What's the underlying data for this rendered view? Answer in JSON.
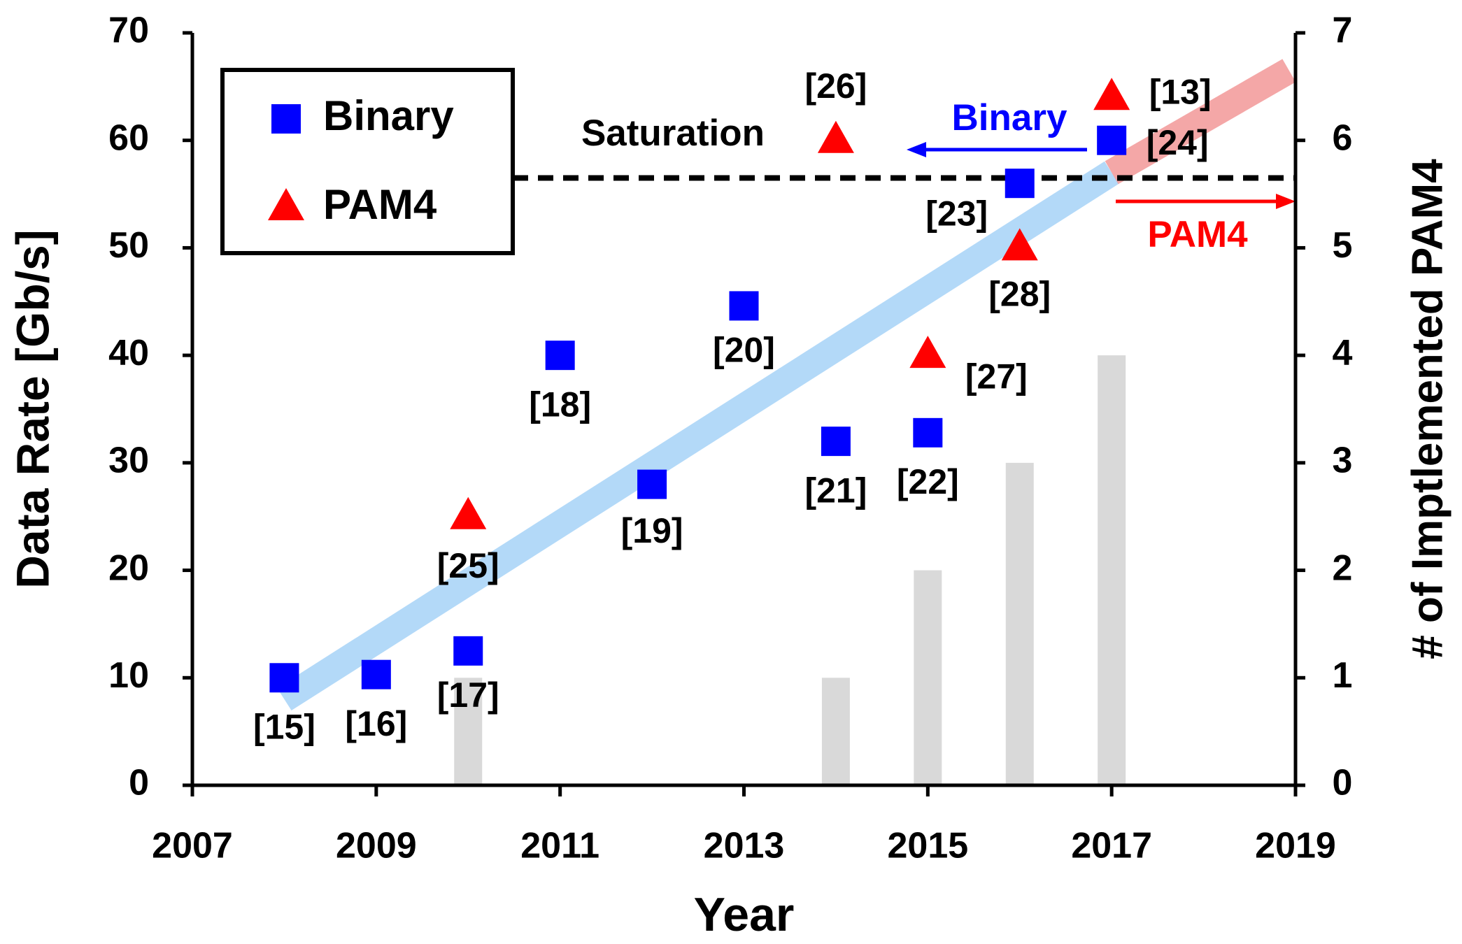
{
  "chart_data": {
    "type": "scatter",
    "xlabel": "Year",
    "ylabel": "Data Rate [Gb/s]",
    "y2label": "# of Imptlemented PAM4",
    "xlim": [
      2007,
      2019
    ],
    "xticks": [
      2007,
      2009,
      2011,
      2013,
      2015,
      2017,
      2019
    ],
    "ylim": [
      0,
      70
    ],
    "yticks": [
      0,
      10,
      20,
      30,
      40,
      50,
      60,
      70
    ],
    "y2lim": [
      0,
      7
    ],
    "y2ticks": [
      0,
      1,
      2,
      3,
      4,
      5,
      6,
      7
    ],
    "grid": false,
    "legend": "upper left",
    "series": [
      {
        "name": "Binary",
        "color": "#0000ff",
        "marker": "square",
        "x": [
          2008,
          2009,
          2010,
          2011,
          2012,
          2013,
          2014,
          2015,
          2016,
          2017
        ],
        "values": [
          10,
          10.3,
          12.5,
          40,
          28,
          44.6,
          32,
          32.8,
          56,
          60
        ],
        "labels": [
          "[15]",
          "[16]",
          "[17]",
          "[18]",
          "[19]",
          "[20]",
          "[21]",
          "[22]",
          "[23]",
          "[24]"
        ]
      },
      {
        "name": "PAM4",
        "color": "#ff0000",
        "marker": "triangle",
        "x": [
          2010,
          2014,
          2015,
          2016,
          2017
        ],
        "values": [
          25,
          60,
          40,
          50,
          64
        ],
        "labels": [
          "[25]",
          "[26]",
          "[27]",
          "[28]",
          "[13]"
        ]
      }
    ],
    "bars": {
      "axis": "y2",
      "color": "#d9d9d9",
      "x": [
        2010,
        2014,
        2015,
        2016,
        2017
      ],
      "values": [
        1,
        1,
        2,
        3,
        4
      ]
    },
    "trends": [
      {
        "color": "#99ccf5",
        "x": [
          2008,
          2017
        ],
        "y": [
          8,
          57
        ]
      },
      {
        "color": "#f08a8a",
        "x": [
          2017,
          2018.93
        ],
        "y": [
          57,
          66.5
        ]
      }
    ],
    "saturation": {
      "value": 56.5,
      "label": "Saturation"
    },
    "annotations": [
      {
        "text": "Binary",
        "color": "#0000ff"
      },
      {
        "text": "PAM4",
        "color": "#ff0000"
      }
    ]
  }
}
